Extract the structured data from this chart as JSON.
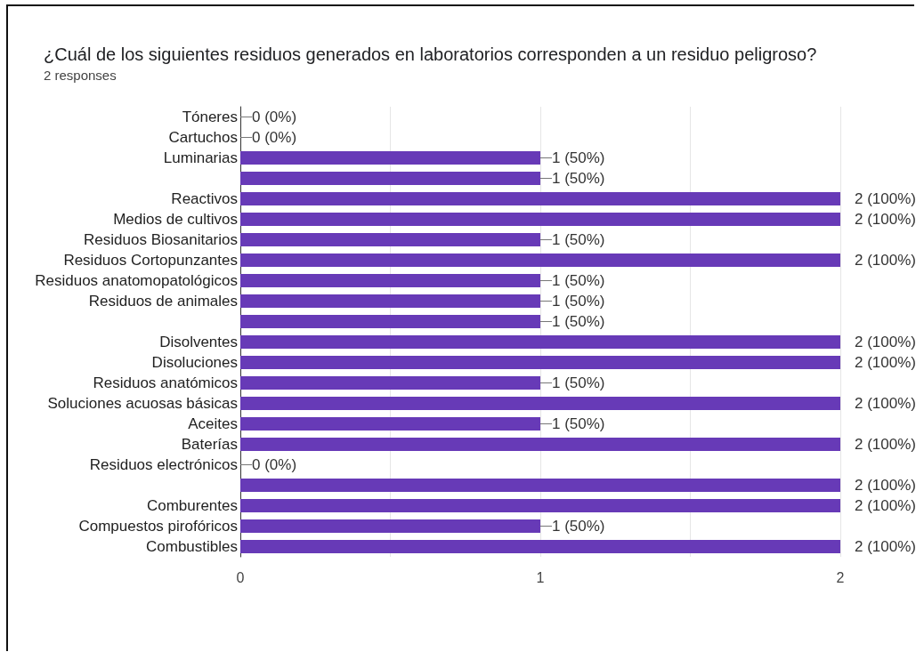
{
  "chart_data": {
    "type": "bar",
    "orientation": "horizontal",
    "title": "¿Cuál de los siguientes residuos generados en laboratorios corresponden a un residuo peligroso?",
    "subtitle": "2 responses",
    "categories": [
      "Tóneres",
      "Cartuchos",
      "Luminarias",
      null,
      "Reactivos",
      "Medios de cultivos",
      "Residuos Biosanitarios",
      "Residuos Cortopunzantes",
      "Residuos anatomopatológicos",
      "Residuos de animales",
      null,
      "Disolventes",
      "Disoluciones",
      "Residuos anatómicos",
      "Soluciones acuosas básicas",
      "Aceites",
      "Baterías",
      "Residuos electrónicos",
      null,
      "Comburentes",
      "Compuestos pirofóricos",
      "Combustibles"
    ],
    "values": [
      0,
      0,
      1,
      1,
      2,
      2,
      1,
      2,
      1,
      1,
      1,
      2,
      2,
      1,
      2,
      1,
      2,
      0,
      2,
      2,
      1,
      2
    ],
    "value_labels": [
      "0 (0%)",
      "0 (0%)",
      "1 (50%)",
      "1 (50%)",
      "2 (100%)",
      "2 (100%)",
      "1 (50%)",
      "2 (100%)",
      "1 (50%)",
      "1 (50%)",
      "1 (50%)",
      "2 (100%)",
      "2 (100%)",
      "1 (50%)",
      "2 (100%)",
      "1 (50%)",
      "2 (100%)",
      "0 (0%)",
      "2 (100%)",
      "2 (100%)",
      "1 (50%)",
      "2 (100%)"
    ],
    "color": "#673ab7",
    "xlim": [
      0,
      2
    ],
    "xticks": [
      0,
      {
        "value": 0.5,
        "label": null
      },
      1,
      {
        "value": 1.5,
        "label": null
      },
      2
    ],
    "grid": "x"
  }
}
